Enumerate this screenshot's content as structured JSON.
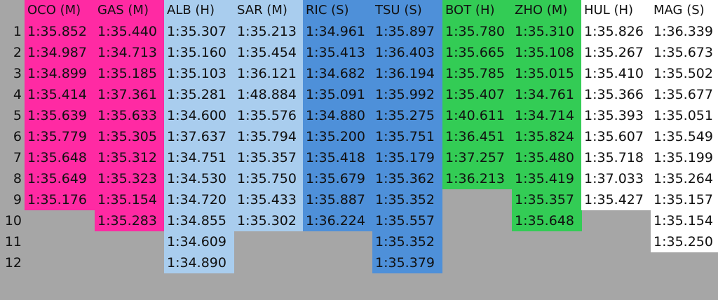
{
  "colors": {
    "background": "#a6a6a6",
    "medium": "#ff2aa3",
    "hard": "#a9cdee",
    "soft": "#4e90d9",
    "hard_green": "#33cc55",
    "medium_green": "#33cc55",
    "white": "#ffffff"
  },
  "row_numbers": [
    "1",
    "2",
    "3",
    "4",
    "5",
    "6",
    "7",
    "8",
    "9",
    "10",
    "11",
    "12"
  ],
  "drivers": [
    {
      "header": "OCO (M)",
      "color": "#ff2aa3",
      "times": [
        "1:35.852",
        "1:34.987",
        "1:34.899",
        "1:35.414",
        "1:35.639",
        "1:35.779",
        "1:35.648",
        "1:35.649",
        "1:35.176"
      ]
    },
    {
      "header": "GAS (M)",
      "color": "#ff2aa3",
      "times": [
        "1:35.440",
        "1:34.713",
        "1:35.185",
        "1:37.361",
        "1:35.633",
        "1:35.305",
        "1:35.312",
        "1:35.323",
        "1:35.154",
        "1:35.283"
      ]
    },
    {
      "header": "ALB (H)",
      "color": "#a9cdee",
      "times": [
        "1:35.307",
        "1:35.160",
        "1:35.103",
        "1:35.281",
        "1:34.600",
        "1:37.637",
        "1:34.751",
        "1:34.530",
        "1:34.720",
        "1:34.855",
        "1:34.609",
        "1:34.890"
      ]
    },
    {
      "header": "SAR (M)",
      "color": "#a9cdee",
      "times": [
        "1:35.213",
        "1:35.454",
        "1:36.121",
        "1:48.884",
        "1:35.576",
        "1:35.794",
        "1:35.357",
        "1:35.750",
        "1:35.433",
        "1:35.302"
      ]
    },
    {
      "header": "RIC (S)",
      "color": "#4e90d9",
      "times": [
        "1:34.961",
        "1:35.413",
        "1:34.682",
        "1:35.091",
        "1:34.880",
        "1:35.200",
        "1:35.418",
        "1:35.679",
        "1:35.887",
        "1:36.224"
      ]
    },
    {
      "header": "TSU (S)",
      "color": "#4e90d9",
      "times": [
        "1:35.897",
        "1:36.403",
        "1:36.194",
        "1:35.992",
        "1:35.275",
        "1:35.751",
        "1:35.179",
        "1:35.362",
        "1:35.352",
        "1:35.557",
        "1:35.352",
        "1:35.379"
      ]
    },
    {
      "header": "BOT (H)",
      "color": "#33cc55",
      "times": [
        "1:35.780",
        "1:35.665",
        "1:35.785",
        "1:35.407",
        "1:40.611",
        "1:36.451",
        "1:37.257",
        "1:36.213"
      ]
    },
    {
      "header": "ZHO (M)",
      "color": "#33cc55",
      "times": [
        "1:35.310",
        "1:35.108",
        "1:35.015",
        "1:34.761",
        "1:34.714",
        "1:35.824",
        "1:35.480",
        "1:35.419",
        "1:35.357",
        "1:35.648"
      ]
    },
    {
      "header": "HUL (H)",
      "color": "#ffffff",
      "times": [
        "1:35.826",
        "1:35.267",
        "1:35.410",
        "1:35.366",
        "1:35.393",
        "1:35.607",
        "1:35.718",
        "1:37.033",
        "1:35.427"
      ]
    },
    {
      "header": "MAG (S)",
      "color": "#ffffff",
      "times": [
        "1:36.339",
        "1:35.673",
        "1:35.502",
        "1:35.677",
        "1:35.051",
        "1:35.549",
        "1:35.199",
        "1:35.264",
        "1:35.157",
        "1:35.154",
        "1:35.250"
      ]
    }
  ]
}
